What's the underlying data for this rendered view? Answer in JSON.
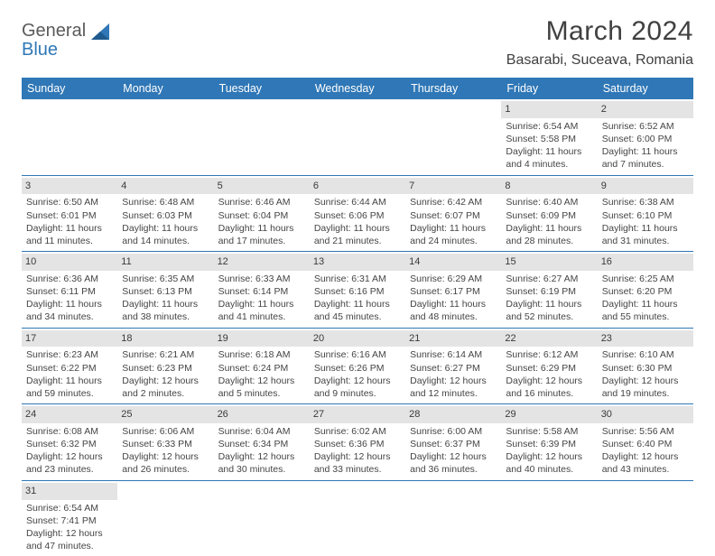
{
  "brand": {
    "part1": "General",
    "part2": "Blue"
  },
  "title": "March 2024",
  "location": "Basarabi, Suceava, Romania",
  "colors": {
    "header_bg": "#2f77b6",
    "header_text": "#ffffff",
    "daynum_bg": "#e4e4e4",
    "rule": "#2f77b6",
    "page_bg": "#ffffff",
    "text": "#3a3a3a"
  },
  "day_headers": [
    "Sunday",
    "Monday",
    "Tuesday",
    "Wednesday",
    "Thursday",
    "Friday",
    "Saturday"
  ],
  "weeks": [
    [
      null,
      null,
      null,
      null,
      null,
      {
        "n": "1",
        "sr": "Sunrise: 6:54 AM",
        "ss": "Sunset: 5:58 PM",
        "d1": "Daylight: 11 hours",
        "d2": "and 4 minutes."
      },
      {
        "n": "2",
        "sr": "Sunrise: 6:52 AM",
        "ss": "Sunset: 6:00 PM",
        "d1": "Daylight: 11 hours",
        "d2": "and 7 minutes."
      }
    ],
    [
      {
        "n": "3",
        "sr": "Sunrise: 6:50 AM",
        "ss": "Sunset: 6:01 PM",
        "d1": "Daylight: 11 hours",
        "d2": "and 11 minutes."
      },
      {
        "n": "4",
        "sr": "Sunrise: 6:48 AM",
        "ss": "Sunset: 6:03 PM",
        "d1": "Daylight: 11 hours",
        "d2": "and 14 minutes."
      },
      {
        "n": "5",
        "sr": "Sunrise: 6:46 AM",
        "ss": "Sunset: 6:04 PM",
        "d1": "Daylight: 11 hours",
        "d2": "and 17 minutes."
      },
      {
        "n": "6",
        "sr": "Sunrise: 6:44 AM",
        "ss": "Sunset: 6:06 PM",
        "d1": "Daylight: 11 hours",
        "d2": "and 21 minutes."
      },
      {
        "n": "7",
        "sr": "Sunrise: 6:42 AM",
        "ss": "Sunset: 6:07 PM",
        "d1": "Daylight: 11 hours",
        "d2": "and 24 minutes."
      },
      {
        "n": "8",
        "sr": "Sunrise: 6:40 AM",
        "ss": "Sunset: 6:09 PM",
        "d1": "Daylight: 11 hours",
        "d2": "and 28 minutes."
      },
      {
        "n": "9",
        "sr": "Sunrise: 6:38 AM",
        "ss": "Sunset: 6:10 PM",
        "d1": "Daylight: 11 hours",
        "d2": "and 31 minutes."
      }
    ],
    [
      {
        "n": "10",
        "sr": "Sunrise: 6:36 AM",
        "ss": "Sunset: 6:11 PM",
        "d1": "Daylight: 11 hours",
        "d2": "and 34 minutes."
      },
      {
        "n": "11",
        "sr": "Sunrise: 6:35 AM",
        "ss": "Sunset: 6:13 PM",
        "d1": "Daylight: 11 hours",
        "d2": "and 38 minutes."
      },
      {
        "n": "12",
        "sr": "Sunrise: 6:33 AM",
        "ss": "Sunset: 6:14 PM",
        "d1": "Daylight: 11 hours",
        "d2": "and 41 minutes."
      },
      {
        "n": "13",
        "sr": "Sunrise: 6:31 AM",
        "ss": "Sunset: 6:16 PM",
        "d1": "Daylight: 11 hours",
        "d2": "and 45 minutes."
      },
      {
        "n": "14",
        "sr": "Sunrise: 6:29 AM",
        "ss": "Sunset: 6:17 PM",
        "d1": "Daylight: 11 hours",
        "d2": "and 48 minutes."
      },
      {
        "n": "15",
        "sr": "Sunrise: 6:27 AM",
        "ss": "Sunset: 6:19 PM",
        "d1": "Daylight: 11 hours",
        "d2": "and 52 minutes."
      },
      {
        "n": "16",
        "sr": "Sunrise: 6:25 AM",
        "ss": "Sunset: 6:20 PM",
        "d1": "Daylight: 11 hours",
        "d2": "and 55 minutes."
      }
    ],
    [
      {
        "n": "17",
        "sr": "Sunrise: 6:23 AM",
        "ss": "Sunset: 6:22 PM",
        "d1": "Daylight: 11 hours",
        "d2": "and 59 minutes."
      },
      {
        "n": "18",
        "sr": "Sunrise: 6:21 AM",
        "ss": "Sunset: 6:23 PM",
        "d1": "Daylight: 12 hours",
        "d2": "and 2 minutes."
      },
      {
        "n": "19",
        "sr": "Sunrise: 6:18 AM",
        "ss": "Sunset: 6:24 PM",
        "d1": "Daylight: 12 hours",
        "d2": "and 5 minutes."
      },
      {
        "n": "20",
        "sr": "Sunrise: 6:16 AM",
        "ss": "Sunset: 6:26 PM",
        "d1": "Daylight: 12 hours",
        "d2": "and 9 minutes."
      },
      {
        "n": "21",
        "sr": "Sunrise: 6:14 AM",
        "ss": "Sunset: 6:27 PM",
        "d1": "Daylight: 12 hours",
        "d2": "and 12 minutes."
      },
      {
        "n": "22",
        "sr": "Sunrise: 6:12 AM",
        "ss": "Sunset: 6:29 PM",
        "d1": "Daylight: 12 hours",
        "d2": "and 16 minutes."
      },
      {
        "n": "23",
        "sr": "Sunrise: 6:10 AM",
        "ss": "Sunset: 6:30 PM",
        "d1": "Daylight: 12 hours",
        "d2": "and 19 minutes."
      }
    ],
    [
      {
        "n": "24",
        "sr": "Sunrise: 6:08 AM",
        "ss": "Sunset: 6:32 PM",
        "d1": "Daylight: 12 hours",
        "d2": "and 23 minutes."
      },
      {
        "n": "25",
        "sr": "Sunrise: 6:06 AM",
        "ss": "Sunset: 6:33 PM",
        "d1": "Daylight: 12 hours",
        "d2": "and 26 minutes."
      },
      {
        "n": "26",
        "sr": "Sunrise: 6:04 AM",
        "ss": "Sunset: 6:34 PM",
        "d1": "Daylight: 12 hours",
        "d2": "and 30 minutes."
      },
      {
        "n": "27",
        "sr": "Sunrise: 6:02 AM",
        "ss": "Sunset: 6:36 PM",
        "d1": "Daylight: 12 hours",
        "d2": "and 33 minutes."
      },
      {
        "n": "28",
        "sr": "Sunrise: 6:00 AM",
        "ss": "Sunset: 6:37 PM",
        "d1": "Daylight: 12 hours",
        "d2": "and 36 minutes."
      },
      {
        "n": "29",
        "sr": "Sunrise: 5:58 AM",
        "ss": "Sunset: 6:39 PM",
        "d1": "Daylight: 12 hours",
        "d2": "and 40 minutes."
      },
      {
        "n": "30",
        "sr": "Sunrise: 5:56 AM",
        "ss": "Sunset: 6:40 PM",
        "d1": "Daylight: 12 hours",
        "d2": "and 43 minutes."
      }
    ],
    [
      {
        "n": "31",
        "sr": "Sunrise: 6:54 AM",
        "ss": "Sunset: 7:41 PM",
        "d1": "Daylight: 12 hours",
        "d2": "and 47 minutes."
      },
      null,
      null,
      null,
      null,
      null,
      null
    ]
  ]
}
